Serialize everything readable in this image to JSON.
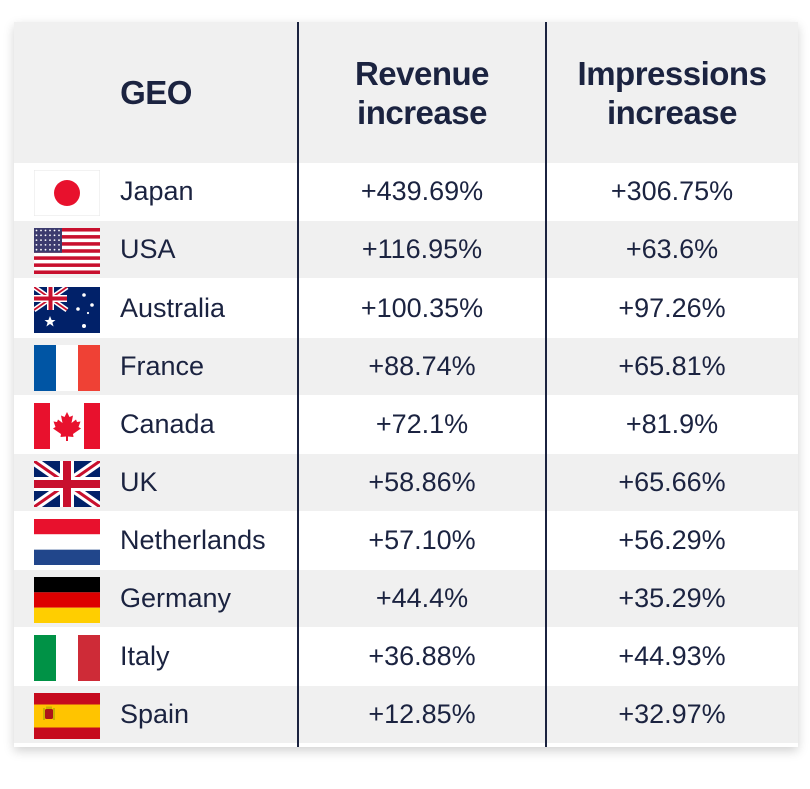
{
  "chart_data": {
    "type": "table",
    "columns": [
      "GEO",
      "Revenue increase",
      "Impressions increase"
    ],
    "header": {
      "geo": "GEO",
      "revenue_line1": "Revenue",
      "revenue_line2": "increase",
      "impressions_line1": "Impressions",
      "impressions_line2": "increase"
    },
    "rows": [
      {
        "country": "Japan",
        "flag": "japan-flag-icon",
        "revenue": "+439.69%",
        "impressions": "+306.75%"
      },
      {
        "country": "USA",
        "flag": "usa-flag-icon",
        "revenue": "+116.95%",
        "impressions": "+63.6%"
      },
      {
        "country": "Australia",
        "flag": "australia-flag-icon",
        "revenue": "+100.35%",
        "impressions": "+97.26%"
      },
      {
        "country": "France",
        "flag": "france-flag-icon",
        "revenue": "+88.74%",
        "impressions": "+65.81%"
      },
      {
        "country": "Canada",
        "flag": "canada-flag-icon",
        "revenue": "+72.1%",
        "impressions": "+81.9%"
      },
      {
        "country": "UK",
        "flag": "uk-flag-icon",
        "revenue": "+58.86%",
        "impressions": "+65.66%"
      },
      {
        "country": "Netherlands",
        "flag": "netherlands-flag-icon",
        "revenue": "+57.10%",
        "impressions": "+56.29%"
      },
      {
        "country": "Germany",
        "flag": "germany-flag-icon",
        "revenue": "+44.4%",
        "impressions": "+35.29%"
      },
      {
        "country": "Italy",
        "flag": "italy-flag-icon",
        "revenue": "+36.88%",
        "impressions": "+44.93%"
      },
      {
        "country": "Spain",
        "flag": "spain-flag-icon",
        "revenue": "+12.85%",
        "impressions": "+32.97%"
      }
    ]
  },
  "colors": {
    "text": "#1b2340",
    "shade": "#f0f0f0",
    "divider": "#1b2340"
  }
}
